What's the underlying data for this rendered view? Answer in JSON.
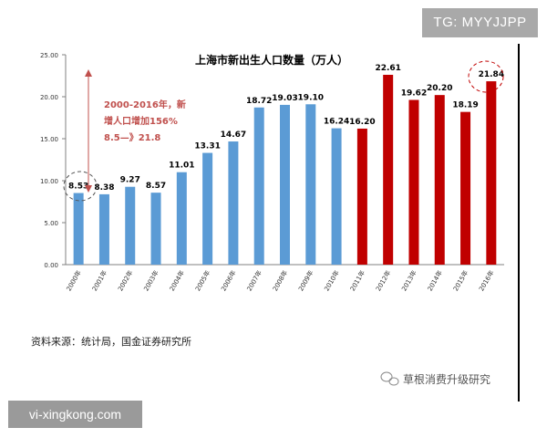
{
  "watermarks": {
    "top_right": "TG: MYYJJPP",
    "bottom_left": "vi-xingkong.com"
  },
  "source_note": "资料来源：统计局，国金证券研究所",
  "brand": {
    "label": "草根消费升级研究",
    "icon": "wechat-icon"
  },
  "callout_lines": [
    "2000-2016年，新",
    "增人口增加156%",
    "8.5—》21.8"
  ],
  "colors": {
    "blue": "#5b9bd5",
    "red": "#c00000",
    "callout_text": "#c0504d"
  },
  "chart_data": {
    "type": "bar",
    "title": "上海市新出生人口数量（万人）",
    "categories": [
      "2000年",
      "2001年",
      "2002年",
      "2003年",
      "2004年",
      "2005年",
      "2006年",
      "2007年",
      "2008年",
      "2009年",
      "2010年",
      "2011年",
      "2012年",
      "2013年",
      "2014年",
      "2015年",
      "2016年"
    ],
    "values": [
      8.53,
      8.38,
      9.27,
      8.57,
      11.01,
      13.31,
      14.67,
      18.72,
      19.03,
      19.1,
      16.24,
      16.2,
      22.61,
      19.62,
      20.2,
      18.19,
      21.84
    ],
    "data_labels": [
      "8.53",
      "8.38",
      "9.27",
      "8.57",
      "11.01",
      "13.31",
      "14.67",
      "18.72",
      "19.03",
      "19.10",
      "16.24",
      "16.20",
      "22.61",
      "19.62",
      "20.20",
      "18.19",
      "21.84"
    ],
    "bar_colors": [
      "blue",
      "blue",
      "blue",
      "blue",
      "blue",
      "blue",
      "blue",
      "blue",
      "blue",
      "blue",
      "blue",
      "red",
      "red",
      "red",
      "red",
      "red",
      "red"
    ],
    "ylim": [
      0,
      25
    ],
    "yticks": [
      "0.00",
      "5.00",
      "10.00",
      "15.00",
      "20.00",
      "25.00"
    ],
    "ytick_values": [
      0,
      5,
      10,
      15,
      20,
      25
    ],
    "grid": false,
    "legend": "none"
  }
}
